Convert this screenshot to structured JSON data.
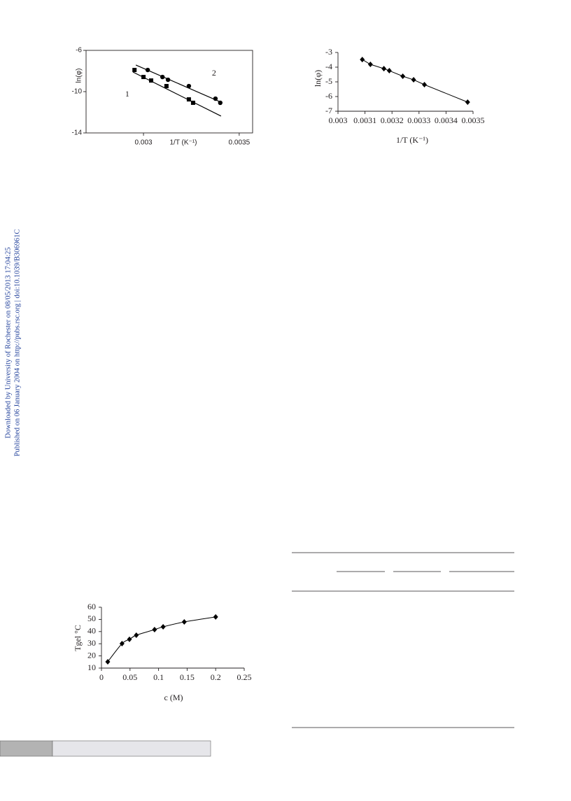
{
  "watermark": [
    "Downloaded by University of Rochester on 08/05/2013 17:04:25",
    "Published on 06 January 2004 on http://pubs.rsc.org | doi:10.1039/B306961C"
  ],
  "chart_data": [
    {
      "type": "scatter",
      "xlabel": "1/T (K⁻¹)",
      "ylabel": "ln(φ)",
      "xlim": [
        0.0027,
        0.00357
      ],
      "ylim": [
        -14,
        -6
      ],
      "xticks": [
        0.003,
        0.0035
      ],
      "yticks": [
        -6,
        -10,
        -14
      ],
      "frame": true,
      "series": [
        {
          "name": "1",
          "color": "#000000",
          "marker": "square",
          "x": [
            0.002953,
            0.003,
            0.00304,
            0.00312,
            0.003237,
            0.003259
          ],
          "values": [
            -7.9,
            -8.58,
            -8.92,
            -9.46,
            -10.75,
            -11.08
          ],
          "fit": {
            "x": [
              0.002945,
              0.003405
            ],
            "values": [
              -8.1,
              -12.37
            ]
          }
        },
        {
          "name": "2",
          "color": "#000000",
          "marker": "circle",
          "x": [
            0.003022,
            0.003099,
            0.003128,
            0.003237,
            0.003376,
            0.003401
          ],
          "values": [
            -7.9,
            -8.58,
            -8.85,
            -9.46,
            -10.68,
            -11.08
          ],
          "fit": {
            "x": [
              0.00296,
              0.003412
            ],
            "values": [
              -7.42,
              -11.08
            ]
          }
        }
      ]
    },
    {
      "type": "scatter",
      "xlabel": "1/T (K⁻¹)",
      "ylabel": "ln(φ)",
      "xlim": [
        0.003,
        0.0035
      ],
      "ylim": [
        -7,
        -3
      ],
      "xticks": [
        0.003,
        0.0031,
        0.0032,
        0.0033,
        0.0034,
        0.0035
      ],
      "yticks": [
        -3,
        -4,
        -5,
        -6,
        -7
      ],
      "frame": false,
      "line": "straight",
      "series": [
        {
          "color": "#000000",
          "marker": "diamond",
          "x": [
            0.00309,
            0.00312,
            0.00317,
            0.00319,
            0.00324,
            0.00328,
            0.00332,
            0.00348
          ],
          "values": [
            -3.48,
            -3.81,
            -4.1,
            -4.24,
            -4.62,
            -4.86,
            -5.19,
            -6.38
          ]
        }
      ]
    },
    {
      "type": "scatter",
      "xlabel": "c (M)",
      "ylabel": "Tgel °C",
      "xlim": [
        0,
        0.25
      ],
      "ylim": [
        10,
        60
      ],
      "xticks": [
        0,
        0.05,
        0.1,
        0.15,
        0.2,
        0.25
      ],
      "yticks": [
        10,
        20,
        30,
        40,
        50,
        60
      ],
      "frame": false,
      "line": "smooth",
      "series": [
        {
          "color": "#000000",
          "marker": "diamond",
          "x": [
            0.011,
            0.036,
            0.049,
            0.061,
            0.093,
            0.108,
            0.145,
            0.2
          ],
          "values": [
            15.2,
            30.1,
            33.6,
            37,
            41.6,
            43.9,
            47.9,
            52
          ]
        }
      ]
    }
  ]
}
